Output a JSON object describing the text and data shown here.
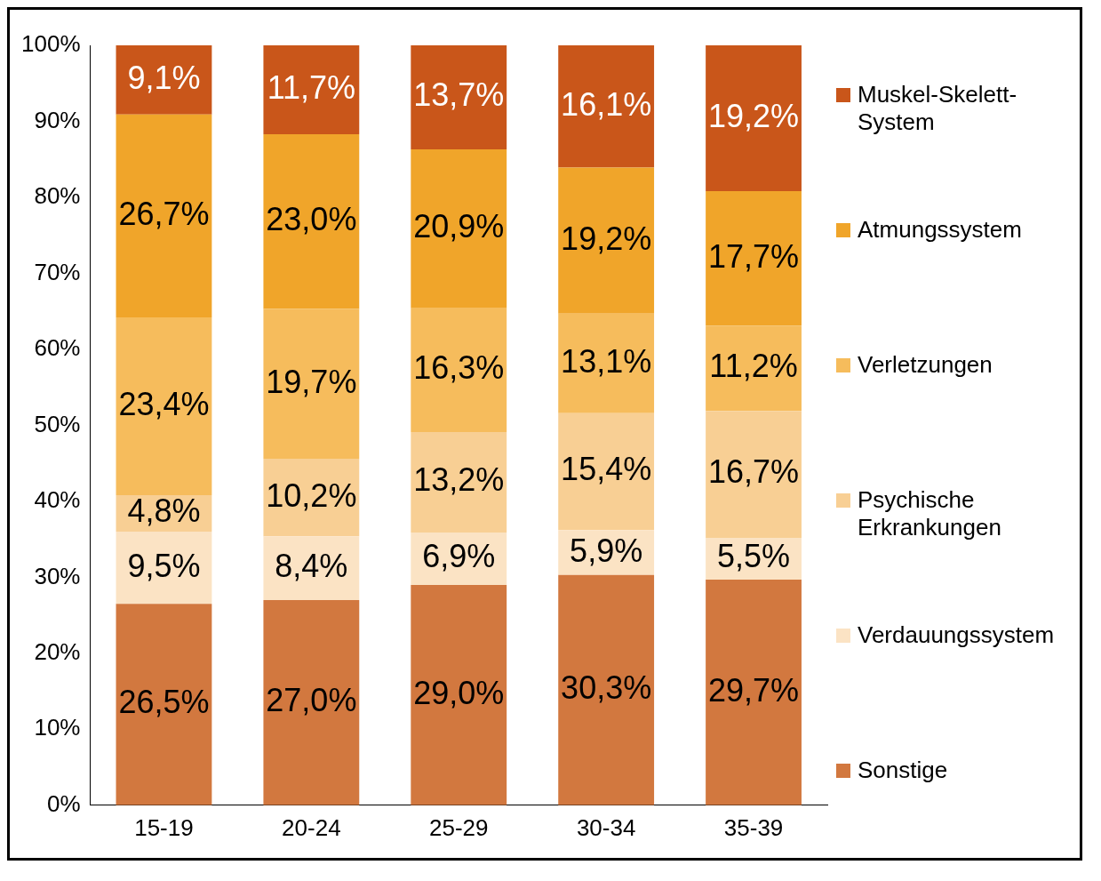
{
  "chart_data": {
    "type": "bar",
    "stacked": true,
    "categories": [
      "15-19",
      "20-24",
      "25-29",
      "30-34",
      "35-39"
    ],
    "ylim": [
      0,
      100
    ],
    "yticks": [
      {
        "value": 0,
        "label": "0%"
      },
      {
        "value": 10,
        "label": "10%"
      },
      {
        "value": 20,
        "label": "20%"
      },
      {
        "value": 30,
        "label": "30%"
      },
      {
        "value": 40,
        "label": "40%"
      },
      {
        "value": 50,
        "label": "50%"
      },
      {
        "value": 60,
        "label": "60%"
      },
      {
        "value": 70,
        "label": "70%"
      },
      {
        "value": 80,
        "label": "80%"
      },
      {
        "value": 90,
        "label": "90%"
      },
      {
        "value": 100,
        "label": "100%"
      }
    ],
    "grid": false,
    "legend": "right",
    "series": [
      {
        "name": "Sonstige",
        "color": "#d2783f",
        "values": [
          26.5,
          27.0,
          29.0,
          30.3,
          29.7
        ],
        "value_labels": [
          "26,5%",
          "27,0%",
          "29,0%",
          "30,3%",
          "29,7%"
        ]
      },
      {
        "name": "Verdauungssystem",
        "color": "#fbe3c4",
        "values": [
          9.5,
          8.4,
          6.9,
          5.9,
          5.5
        ],
        "value_labels": [
          "9,5%",
          "8,4%",
          "6,9%",
          "5,9%",
          "5,5%"
        ]
      },
      {
        "name": "Psychische Erkrankungen",
        "color": "#f8cf94",
        "values": [
          4.8,
          10.2,
          13.2,
          15.4,
          16.7
        ],
        "value_labels": [
          "4,8%",
          "10,2%",
          "13,2%",
          "15,4%",
          "16,7%"
        ]
      },
      {
        "name": "Verletzungen",
        "color": "#f6bc5c",
        "values": [
          23.4,
          19.7,
          16.3,
          13.1,
          11.2
        ],
        "value_labels": [
          "23,4%",
          "19,7%",
          "16,3%",
          "13,1%",
          "11,2%"
        ]
      },
      {
        "name": "Atmungssystem",
        "color": "#f0a52a",
        "values": [
          26.7,
          23.0,
          20.9,
          19.2,
          17.7
        ],
        "value_labels": [
          "26,7%",
          "23,0%",
          "20,9%",
          "19,2%",
          "17,7%"
        ]
      },
      {
        "name": "Muskel-Skelett-System",
        "color": "#c9561a",
        "values": [
          9.1,
          11.7,
          13.7,
          16.1,
          19.2
        ],
        "value_labels": [
          "9,1%",
          "11,7%",
          "13,7%",
          "16,1%",
          "19,2%"
        ]
      }
    ]
  }
}
